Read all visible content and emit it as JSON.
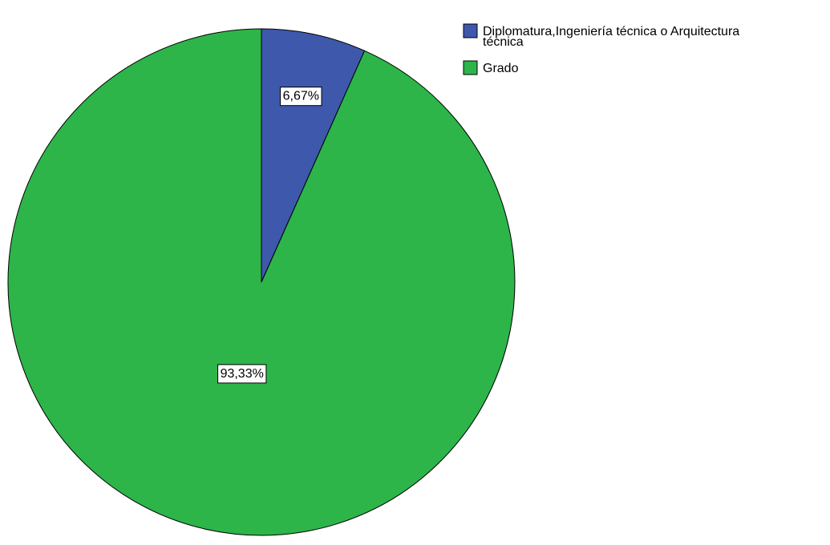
{
  "chart_data": {
    "type": "pie",
    "title": "",
    "start_angle": "12 o'clock",
    "direction": "clockwise",
    "legend_position": "top-right",
    "slices": [
      {
        "label_lines": [
          "Diplomatura,Ingeniería técnica o Arquitectura",
          "técnica"
        ],
        "value": 6.67,
        "data_label": "6,67%",
        "color": "#3e58ac"
      },
      {
        "label_lines": [
          "Grado"
        ],
        "value": 93.33,
        "data_label": "93,33%",
        "color": "#2db54a"
      }
    ]
  }
}
